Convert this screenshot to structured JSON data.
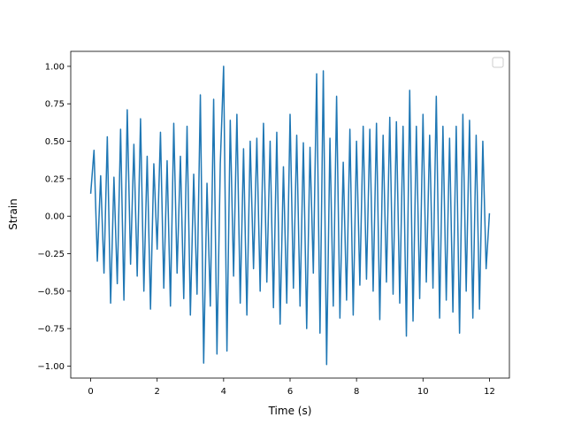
{
  "chart_data": {
    "type": "line",
    "xlabel": "Time (s)",
    "ylabel": "Strain",
    "xlim": [
      -0.6,
      12.6
    ],
    "ylim": [
      -1.08,
      1.1
    ],
    "xticks": [
      0,
      2,
      4,
      6,
      8,
      10,
      12
    ],
    "xtick_labels": [
      "0",
      "2",
      "4",
      "6",
      "8",
      "10",
      "12"
    ],
    "yticks": [
      -1.0,
      -0.75,
      -0.5,
      -0.25,
      0.0,
      0.25,
      0.5,
      0.75,
      1.0
    ],
    "ytick_labels": [
      "−1.00",
      "−0.75",
      "−0.50",
      "−0.25",
      "0.00",
      "0.25",
      "0.50",
      "0.75",
      "1.00"
    ],
    "grid": false,
    "legend": {
      "placement": "top-right",
      "entries": []
    },
    "series": [
      {
        "color": "#1f77b4",
        "x": [
          0,
          0.1,
          0.2,
          0.3,
          0.4,
          0.5,
          0.6,
          0.7,
          0.8,
          0.9,
          1.0,
          1.1,
          1.2,
          1.3,
          1.4,
          1.5,
          1.6,
          1.7,
          1.8,
          1.9,
          2.0,
          2.1,
          2.2,
          2.3,
          2.4,
          2.5,
          2.6,
          2.7,
          2.8,
          2.9,
          3.0,
          3.1,
          3.2,
          3.3,
          3.4,
          3.5,
          3.6,
          3.7,
          3.8,
          3.9,
          4.0,
          4.1,
          4.2,
          4.3,
          4.4,
          4.5,
          4.6,
          4.7,
          4.8,
          4.9,
          5.0,
          5.1,
          5.2,
          5.3,
          5.4,
          5.5,
          5.6,
          5.7,
          5.8,
          5.9,
          6.0,
          6.1,
          6.2,
          6.3,
          6.4,
          6.5,
          6.6,
          6.7,
          6.8,
          6.9,
          7.0,
          7.1,
          7.2,
          7.3,
          7.4,
          7.5,
          7.6,
          7.7,
          7.8,
          7.9,
          8.0,
          8.1,
          8.2,
          8.3,
          8.4,
          8.5,
          8.6,
          8.7,
          8.8,
          8.9,
          9.0,
          9.1,
          9.2,
          9.3,
          9.4,
          9.5,
          9.6,
          9.7,
          9.8,
          9.9,
          10.0,
          10.1,
          10.2,
          10.3,
          10.4,
          10.5,
          10.6,
          10.7,
          10.8,
          10.9,
          11.0,
          11.1,
          11.2,
          11.3,
          11.4,
          11.5,
          11.6,
          11.7,
          11.8,
          11.9,
          12.0
        ],
        "y": [
          0.15,
          0.44,
          -0.3,
          0.27,
          -0.38,
          0.53,
          -0.58,
          0.26,
          -0.45,
          0.58,
          -0.56,
          0.71,
          -0.32,
          0.48,
          -0.4,
          0.65,
          -0.5,
          0.4,
          -0.62,
          0.35,
          -0.22,
          0.56,
          -0.48,
          0.37,
          -0.6,
          0.62,
          -0.38,
          0.4,
          -0.55,
          0.6,
          -0.66,
          0.28,
          -0.52,
          0.81,
          -0.98,
          0.22,
          -0.6,
          0.78,
          -0.92,
          0.35,
          1.0,
          -0.9,
          0.64,
          -0.4,
          0.68,
          -0.58,
          0.45,
          -0.66,
          0.5,
          -0.35,
          0.52,
          -0.5,
          0.62,
          -0.44,
          0.5,
          -0.61,
          0.56,
          -0.72,
          0.33,
          -0.58,
          0.68,
          -0.48,
          0.54,
          -0.6,
          0.49,
          -0.75,
          0.46,
          -0.38,
          0.95,
          -0.78,
          0.97,
          -0.99,
          0.52,
          -0.6,
          0.8,
          -0.68,
          0.36,
          -0.56,
          0.58,
          -0.66,
          0.5,
          -0.46,
          0.6,
          -0.42,
          0.58,
          -0.5,
          0.62,
          -0.69,
          0.54,
          -0.44,
          0.66,
          -0.52,
          0.63,
          -0.58,
          0.6,
          -0.8,
          0.84,
          -0.7,
          0.6,
          -0.55,
          0.68,
          -0.44,
          0.54,
          -0.48,
          0.8,
          -0.68,
          0.6,
          -0.56,
          0.52,
          -0.64,
          0.6,
          -0.78,
          0.68,
          -0.5,
          0.64,
          -0.68,
          0.54,
          -0.62,
          0.5,
          -0.35,
          0.02
        ]
      }
    ]
  }
}
